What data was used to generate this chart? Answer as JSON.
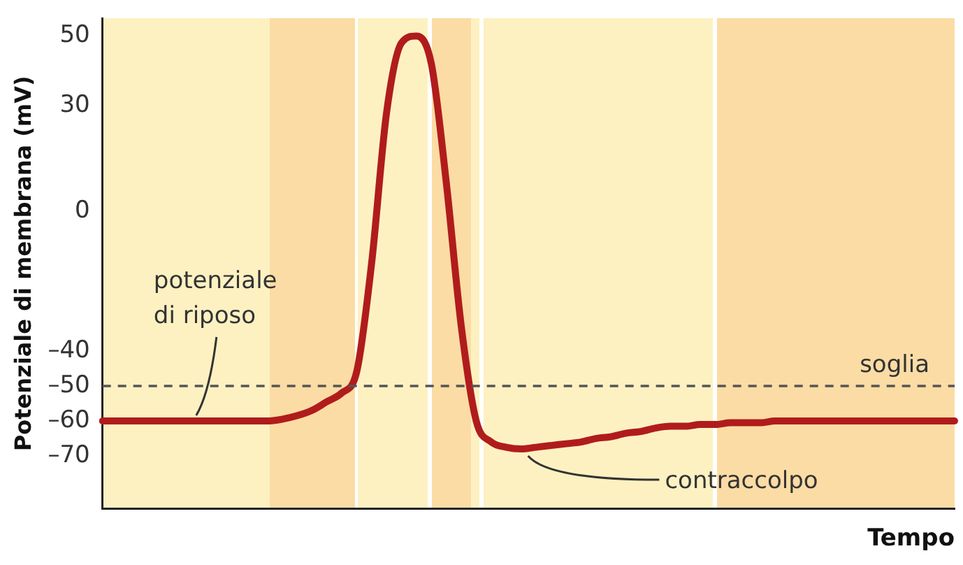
{
  "chart_data": {
    "type": "line",
    "xlabel": "Tempo",
    "ylabel": "Potenziale di membrana (mV)",
    "categories": [
      null,
      null,
      null,
      null,
      null,
      null,
      null,
      null,
      null,
      null,
      null,
      null,
      null,
      null,
      null,
      null,
      null,
      null,
      null,
      null,
      null,
      null,
      null,
      null,
      null,
      null,
      null,
      null,
      null,
      null,
      null,
      null,
      null,
      null,
      null,
      null,
      null,
      null,
      null,
      null,
      null,
      null,
      null,
      null,
      null,
      null,
      null,
      null,
      null,
      null,
      null,
      null,
      null,
      null,
      null,
      null,
      null,
      null
    ],
    "series": [
      {
        "color": "#b01c1c",
        "values": [
          -60,
          -60,
          -60,
          -60,
          -60,
          -60,
          -60,
          -60,
          -60,
          -60,
          -60,
          -60,
          -59.5,
          -58.5,
          -57,
          -54.5,
          -52,
          -46,
          -15,
          28,
          48,
          50,
          42,
          8,
          -33,
          -60,
          -66,
          -67.5,
          -68,
          -67.5,
          -67,
          -66.5,
          -66,
          -65,
          -64.5,
          -63.5,
          -63,
          -62,
          -61.5,
          -61.5,
          -61,
          -61,
          -60.5,
          -60.5,
          -60.5,
          -60,
          -60,
          -60,
          -60,
          -60,
          -60,
          -60,
          -60,
          -60,
          -60,
          -60,
          -60,
          -60
        ]
      }
    ],
    "ylim": [
      -85,
      55
    ],
    "yticks": [
      50,
      30,
      0,
      {
        "value": -40,
        "label": "–40"
      },
      {
        "value": -50,
        "label": "–50"
      },
      {
        "value": -60,
        "label": "–60"
      },
      {
        "value": -70,
        "label": "–70"
      }
    ],
    "tick_labels": "y",
    "grid": false,
    "legend": false,
    "marker": "none",
    "line_style": "solid",
    "ref_lines": [
      {
        "axis": "y",
        "value": -50,
        "label": "soglia",
        "color": "#555555",
        "line_style": "dashed"
      }
    ],
    "annotations": [
      "potenziale di riposo",
      "contraccolpo"
    ]
  }
}
